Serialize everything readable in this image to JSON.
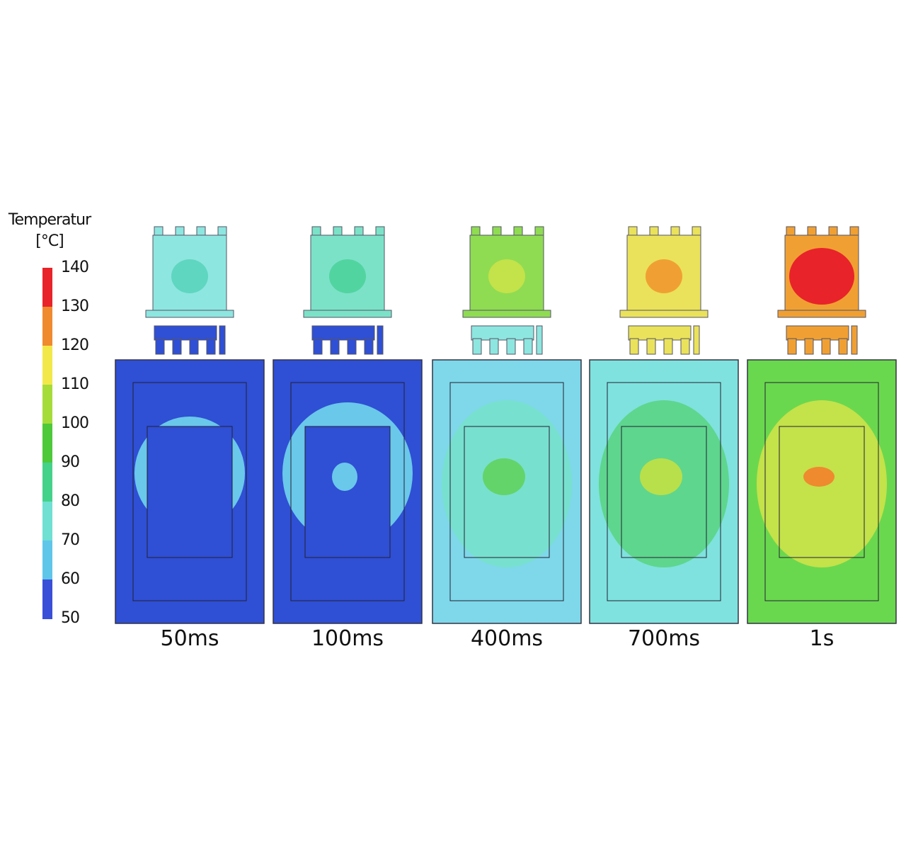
{
  "legend": {
    "title_line1": "Temperatur",
    "title_line2": "[°C]",
    "ticks": [
      "140",
      "130",
      "120",
      "110",
      "100",
      "90",
      "80",
      "70",
      "60",
      "50"
    ],
    "colors": [
      "#e8232a",
      "#ef8a2e",
      "#f2e84a",
      "#a6dc3a",
      "#4ec93a",
      "#44d28a",
      "#6fe0d2",
      "#5fc6ea",
      "#3a4fd8"
    ]
  },
  "snapshots": [
    {
      "label": "50ms",
      "component_color": "#8ee6e0",
      "hot_color": "#5fd6c0",
      "board_color": "#2f4fd4",
      "board_inner": "#2f4fd4",
      "spot_color": "#6ac8ea"
    },
    {
      "label": "100ms",
      "component_color": "#7be2c8",
      "hot_color": "#52d4a0",
      "board_color": "#2f4fd4",
      "board_inner": "#2f4fd4",
      "spot_color": "#6ac8ea"
    },
    {
      "label": "400ms",
      "component_color": "#8fdc52",
      "hot_color": "#c4e24a",
      "board_color": "#7ed8ea",
      "board_inner": "#78e0cf",
      "spot_color": "#63d46a"
    },
    {
      "label": "700ms",
      "component_color": "#eae25a",
      "hot_color": "#f0a032",
      "board_color": "#7fe2de",
      "board_inner": "#5ed68e",
      "spot_color": "#b8e04a"
    },
    {
      "label": "1s",
      "component_color": "#f0a032",
      "hot_color": "#e8232a",
      "board_color": "#6ad84e",
      "board_inner": "#c4e24a",
      "spot_color": "#ef8a2e"
    }
  ]
}
